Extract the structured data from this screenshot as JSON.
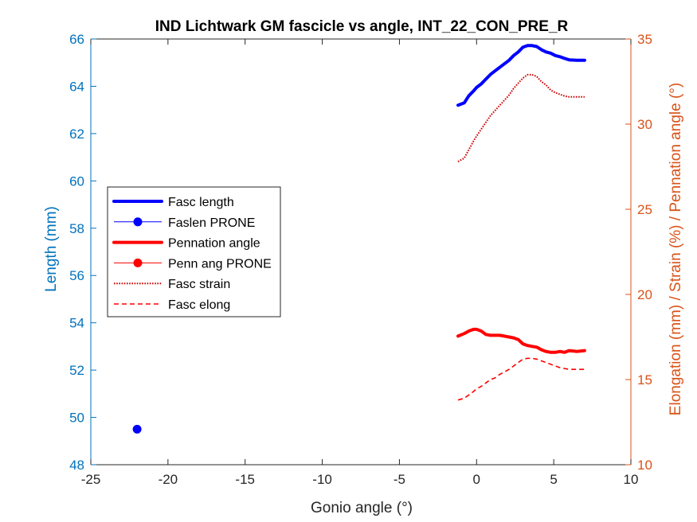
{
  "colors": {
    "left_axis": "#0072BD",
    "right_axis": "#D95319",
    "fasc_length": "#0000FF",
    "pennation": "#FF0000",
    "strain": "#CC0000",
    "elong": "#FF0000",
    "box": "#262626"
  },
  "chart_data": {
    "type": "line",
    "title": "IND Lichtwark GM fascicle vs angle, INT_22_CON_PRE_R",
    "xlabel": "Gonio angle (°)",
    "ylabel_left": "Length (mm)",
    "ylabel_right": "Elongation (mm) / Strain (%) / Pennation angle (°)",
    "xlim": [
      -25,
      10
    ],
    "ylim_left": [
      48,
      66
    ],
    "ylim_right": [
      10,
      35
    ],
    "xticks": [
      -25,
      -20,
      -15,
      -10,
      -5,
      0,
      5,
      10
    ],
    "yticks_left": [
      48,
      50,
      52,
      54,
      56,
      58,
      60,
      62,
      64,
      66
    ],
    "yticks_right": [
      10,
      15,
      20,
      25,
      30,
      35
    ],
    "grid": false,
    "legend_position": "middle-left",
    "series": [
      {
        "name": "Fasc length",
        "axis": "left",
        "style": "solid-thick",
        "color_key": "fasc_length",
        "x": [
          -1.2,
          -0.8,
          -0.5,
          -0.2,
          0.0,
          0.3,
          0.6,
          0.9,
          1.2,
          1.5,
          1.8,
          2.1,
          2.4,
          2.7,
          3.0,
          3.3,
          3.6,
          3.9,
          4.2,
          4.5,
          4.8,
          5.1,
          5.4,
          5.7,
          6.0,
          6.5,
          7.0
        ],
        "y": [
          63.2,
          63.3,
          63.6,
          63.8,
          63.95,
          64.1,
          64.3,
          64.5,
          64.65,
          64.8,
          64.95,
          65.1,
          65.3,
          65.45,
          65.65,
          65.72,
          65.72,
          65.68,
          65.55,
          65.45,
          65.4,
          65.3,
          65.25,
          65.18,
          65.12,
          65.1,
          65.1
        ]
      },
      {
        "name": "Faslen PRONE",
        "axis": "left",
        "style": "marker",
        "color_key": "fasc_length",
        "x": [
          -22
        ],
        "y": [
          49.5
        ]
      },
      {
        "name": "Pennation angle",
        "axis": "right",
        "style": "solid-thick",
        "color_key": "pennation",
        "x": [
          -1.2,
          -0.8,
          -0.5,
          -0.2,
          0.0,
          0.3,
          0.6,
          0.9,
          1.2,
          1.5,
          1.8,
          2.1,
          2.4,
          2.7,
          3.0,
          3.3,
          3.6,
          3.9,
          4.2,
          4.5,
          4.8,
          5.1,
          5.4,
          5.7,
          6.0,
          6.5,
          7.0
        ],
        "y": [
          17.55,
          17.7,
          17.85,
          17.95,
          17.95,
          17.85,
          17.65,
          17.6,
          17.6,
          17.6,
          17.55,
          17.5,
          17.45,
          17.35,
          17.1,
          17.0,
          16.95,
          16.9,
          16.75,
          16.65,
          16.6,
          16.6,
          16.65,
          16.6,
          16.7,
          16.65,
          16.7
        ]
      },
      {
        "name": "Penn ang PRONE",
        "axis": "right",
        "style": "marker",
        "color_key": "pennation",
        "x": [],
        "y": []
      },
      {
        "name": "Fasc strain",
        "axis": "right",
        "style": "dotted",
        "color_key": "strain",
        "x": [
          -1.2,
          -0.8,
          -0.5,
          -0.2,
          0.0,
          0.3,
          0.6,
          0.9,
          1.2,
          1.5,
          1.8,
          2.1,
          2.4,
          2.7,
          3.0,
          3.3,
          3.6,
          3.9,
          4.2,
          4.5,
          4.8,
          5.1,
          5.4,
          5.7,
          6.0,
          6.5,
          7.0
        ],
        "y": [
          27.8,
          28.0,
          28.5,
          29.0,
          29.3,
          29.7,
          30.1,
          30.5,
          30.8,
          31.1,
          31.4,
          31.7,
          32.1,
          32.4,
          32.7,
          32.9,
          32.9,
          32.8,
          32.5,
          32.3,
          32.0,
          31.85,
          31.75,
          31.65,
          31.6,
          31.6,
          31.6
        ]
      },
      {
        "name": "Fasc elong",
        "axis": "right",
        "style": "dashed",
        "color_key": "elong",
        "x": [
          -1.2,
          -0.8,
          -0.5,
          -0.2,
          0.0,
          0.3,
          0.6,
          0.9,
          1.2,
          1.5,
          1.8,
          2.1,
          2.4,
          2.7,
          3.0,
          3.3,
          3.6,
          3.9,
          4.2,
          4.5,
          4.8,
          5.1,
          5.4,
          5.7,
          6.0,
          6.5,
          7.0
        ],
        "y": [
          13.8,
          13.9,
          14.1,
          14.3,
          14.45,
          14.6,
          14.8,
          15.0,
          15.1,
          15.3,
          15.45,
          15.6,
          15.8,
          16.0,
          16.2,
          16.25,
          16.25,
          16.2,
          16.1,
          16.0,
          15.9,
          15.8,
          15.7,
          15.65,
          15.6,
          15.6,
          15.6
        ]
      }
    ]
  }
}
